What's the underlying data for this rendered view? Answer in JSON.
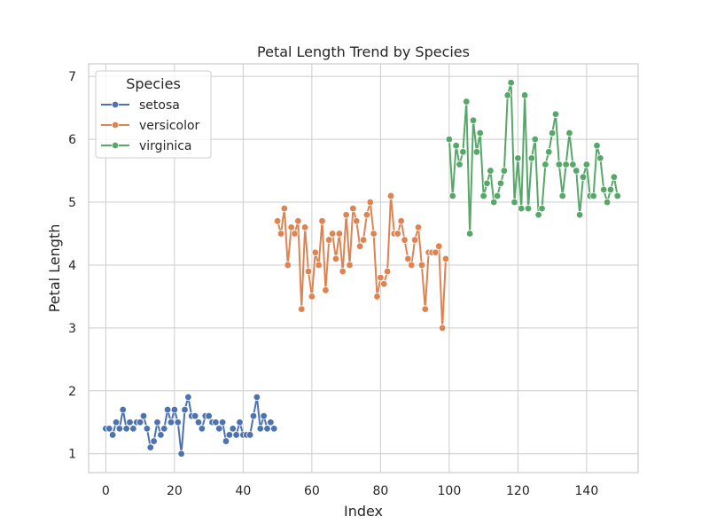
{
  "chart_data": {
    "type": "line",
    "title": "Petal Length Trend by Species",
    "xlabel": "Index",
    "ylabel": "Petal Length",
    "xlim": [
      -5,
      155
    ],
    "ylim": [
      0.7,
      7.2
    ],
    "xticks": [
      0,
      20,
      40,
      60,
      80,
      100,
      120,
      140
    ],
    "yticks": [
      1,
      2,
      3,
      4,
      5,
      6,
      7
    ],
    "grid": true,
    "legend": {
      "title": "Species",
      "placement": "top-left"
    },
    "series": [
      {
        "name": "setosa",
        "color": "#4c72b0",
        "x_start": 0,
        "values": [
          1.4,
          1.4,
          1.3,
          1.5,
          1.4,
          1.7,
          1.4,
          1.5,
          1.4,
          1.5,
          1.5,
          1.6,
          1.4,
          1.1,
          1.2,
          1.5,
          1.3,
          1.4,
          1.7,
          1.5,
          1.7,
          1.5,
          1.0,
          1.7,
          1.9,
          1.6,
          1.6,
          1.5,
          1.4,
          1.6,
          1.6,
          1.5,
          1.5,
          1.4,
          1.5,
          1.2,
          1.3,
          1.4,
          1.3,
          1.5,
          1.3,
          1.3,
          1.3,
          1.6,
          1.9,
          1.4,
          1.6,
          1.4,
          1.5,
          1.4
        ]
      },
      {
        "name": "versicolor",
        "color": "#dd8452",
        "x_start": 50,
        "values": [
          4.7,
          4.5,
          4.9,
          4.0,
          4.6,
          4.5,
          4.7,
          3.3,
          4.6,
          3.9,
          3.5,
          4.2,
          4.0,
          4.7,
          3.6,
          4.4,
          4.5,
          4.1,
          4.5,
          3.9,
          4.8,
          4.0,
          4.9,
          4.7,
          4.3,
          4.4,
          4.8,
          5.0,
          4.5,
          3.5,
          3.8,
          3.7,
          3.9,
          5.1,
          4.5,
          4.5,
          4.7,
          4.4,
          4.1,
          4.0,
          4.4,
          4.6,
          4.0,
          3.3,
          4.2,
          4.2,
          4.2,
          4.3,
          3.0,
          4.1
        ]
      },
      {
        "name": "virginica",
        "color": "#55a868",
        "x_start": 100,
        "values": [
          6.0,
          5.1,
          5.9,
          5.6,
          5.8,
          6.6,
          4.5,
          6.3,
          5.8,
          6.1,
          5.1,
          5.3,
          5.5,
          5.0,
          5.1,
          5.3,
          5.5,
          6.7,
          6.9,
          5.0,
          5.7,
          4.9,
          6.7,
          4.9,
          5.7,
          6.0,
          4.8,
          4.9,
          5.6,
          5.8,
          6.1,
          6.4,
          5.6,
          5.1,
          5.6,
          6.1,
          5.6,
          5.5,
          4.8,
          5.4,
          5.6,
          5.1,
          5.1,
          5.9,
          5.7,
          5.2,
          5.0,
          5.2,
          5.4,
          5.1
        ]
      }
    ]
  }
}
